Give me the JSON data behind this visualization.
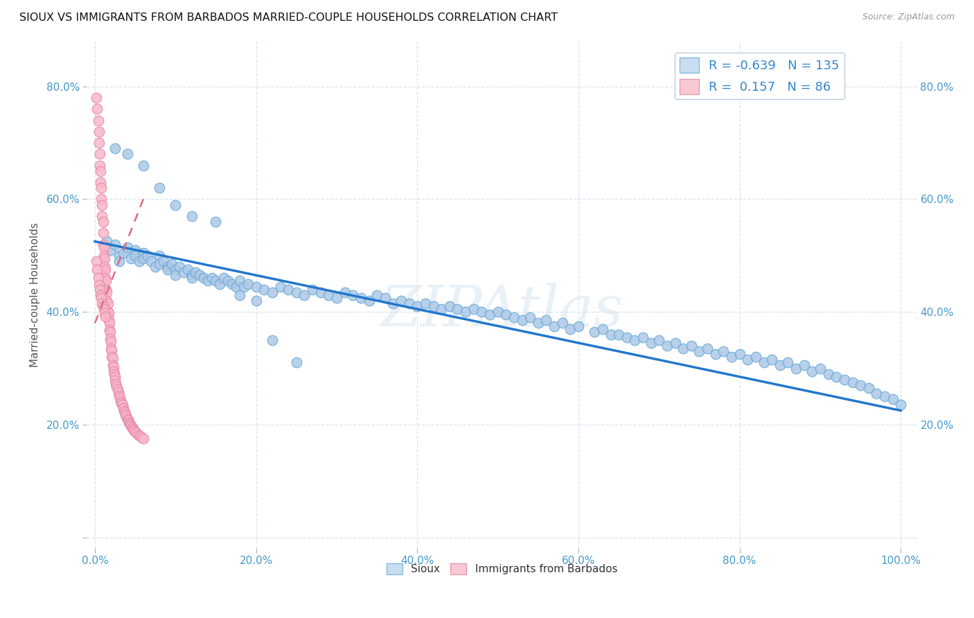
{
  "title": "SIOUX VS IMMIGRANTS FROM BARBADOS MARRIED-COUPLE HOUSEHOLDS CORRELATION CHART",
  "source": "Source: ZipAtlas.com",
  "ylabel": "Married-couple Households",
  "watermark": "ZIPAtlas",
  "legend_blue_R": "-0.639",
  "legend_blue_N": "135",
  "legend_pink_R": "0.157",
  "legend_pink_N": "86",
  "blue_color": "#adc8e8",
  "blue_edge_color": "#6aaad4",
  "blue_line_color": "#2277cc",
  "pink_color": "#f7b8c8",
  "pink_edge_color": "#e888a8",
  "pink_line_color": "#e06880",
  "xlim": [
    -0.01,
    1.02
  ],
  "ylim": [
    -0.02,
    0.88
  ],
  "xticks": [
    0.0,
    0.2,
    0.4,
    0.6,
    0.8,
    1.0
  ],
  "yticks": [
    0.0,
    0.2,
    0.4,
    0.6,
    0.8
  ],
  "xticklabels": [
    "0.0%",
    "20.0%",
    "40.0%",
    "60.0%",
    "80.0%",
    "100.0%"
  ],
  "yticklabels_left": [
    "",
    "20.0%",
    "40.0%",
    "60.0%",
    "80.0%"
  ],
  "yticklabels_right": [
    "",
    "20.0%",
    "40.0%",
    "60.0%",
    "80.0%"
  ],
  "blue_line_x": [
    0.0,
    1.0
  ],
  "blue_line_y": [
    0.525,
    0.225
  ],
  "pink_line_x": [
    0.0,
    0.06
  ],
  "pink_line_y": [
    0.38,
    0.6
  ],
  "blue_scatter_x": [
    0.015,
    0.02,
    0.025,
    0.03,
    0.03,
    0.035,
    0.04,
    0.045,
    0.05,
    0.05,
    0.055,
    0.06,
    0.06,
    0.065,
    0.07,
    0.075,
    0.08,
    0.08,
    0.085,
    0.09,
    0.09,
    0.095,
    0.1,
    0.1,
    0.105,
    0.11,
    0.115,
    0.12,
    0.12,
    0.125,
    0.13,
    0.135,
    0.14,
    0.145,
    0.15,
    0.155,
    0.16,
    0.165,
    0.17,
    0.175,
    0.18,
    0.185,
    0.19,
    0.2,
    0.21,
    0.22,
    0.23,
    0.24,
    0.25,
    0.26,
    0.27,
    0.28,
    0.29,
    0.3,
    0.31,
    0.32,
    0.33,
    0.34,
    0.35,
    0.36,
    0.37,
    0.38,
    0.39,
    0.4,
    0.41,
    0.42,
    0.43,
    0.44,
    0.45,
    0.46,
    0.47,
    0.48,
    0.49,
    0.5,
    0.51,
    0.52,
    0.53,
    0.54,
    0.55,
    0.56,
    0.57,
    0.58,
    0.59,
    0.6,
    0.62,
    0.63,
    0.64,
    0.65,
    0.66,
    0.67,
    0.68,
    0.69,
    0.7,
    0.71,
    0.72,
    0.73,
    0.74,
    0.75,
    0.76,
    0.77,
    0.78,
    0.79,
    0.8,
    0.81,
    0.82,
    0.83,
    0.84,
    0.85,
    0.86,
    0.87,
    0.88,
    0.89,
    0.9,
    0.91,
    0.92,
    0.93,
    0.94,
    0.95,
    0.96,
    0.97,
    0.98,
    0.99,
    1.0,
    0.025,
    0.04,
    0.06,
    0.08,
    0.1,
    0.12,
    0.15,
    0.18,
    0.2,
    0.22,
    0.25
  ],
  "blue_scatter_y": [
    0.525,
    0.51,
    0.52,
    0.5,
    0.49,
    0.505,
    0.515,
    0.495,
    0.51,
    0.5,
    0.49,
    0.505,
    0.495,
    0.5,
    0.49,
    0.48,
    0.5,
    0.485,
    0.49,
    0.48,
    0.475,
    0.485,
    0.475,
    0.465,
    0.48,
    0.47,
    0.475,
    0.465,
    0.46,
    0.47,
    0.465,
    0.46,
    0.455,
    0.46,
    0.455,
    0.45,
    0.46,
    0.455,
    0.45,
    0.445,
    0.455,
    0.445,
    0.45,
    0.445,
    0.44,
    0.435,
    0.445,
    0.44,
    0.435,
    0.43,
    0.44,
    0.435,
    0.43,
    0.425,
    0.435,
    0.43,
    0.425,
    0.42,
    0.43,
    0.425,
    0.415,
    0.42,
    0.415,
    0.41,
    0.415,
    0.41,
    0.405,
    0.41,
    0.405,
    0.4,
    0.405,
    0.4,
    0.395,
    0.4,
    0.395,
    0.39,
    0.385,
    0.39,
    0.38,
    0.385,
    0.375,
    0.38,
    0.37,
    0.375,
    0.365,
    0.37,
    0.36,
    0.36,
    0.355,
    0.35,
    0.355,
    0.345,
    0.35,
    0.34,
    0.345,
    0.335,
    0.34,
    0.33,
    0.335,
    0.325,
    0.33,
    0.32,
    0.325,
    0.315,
    0.32,
    0.31,
    0.315,
    0.305,
    0.31,
    0.3,
    0.305,
    0.295,
    0.3,
    0.29,
    0.285,
    0.28,
    0.275,
    0.27,
    0.265,
    0.255,
    0.25,
    0.245,
    0.235,
    0.69,
    0.68,
    0.66,
    0.62,
    0.59,
    0.57,
    0.56,
    0.43,
    0.42,
    0.35,
    0.31
  ],
  "pink_scatter_x": [
    0.002,
    0.003,
    0.004,
    0.005,
    0.005,
    0.006,
    0.006,
    0.007,
    0.007,
    0.008,
    0.008,
    0.009,
    0.009,
    0.01,
    0.01,
    0.01,
    0.011,
    0.011,
    0.012,
    0.012,
    0.013,
    0.013,
    0.014,
    0.014,
    0.015,
    0.015,
    0.016,
    0.016,
    0.017,
    0.017,
    0.018,
    0.018,
    0.019,
    0.019,
    0.02,
    0.02,
    0.021,
    0.021,
    0.022,
    0.022,
    0.023,
    0.023,
    0.024,
    0.025,
    0.025,
    0.026,
    0.027,
    0.028,
    0.029,
    0.03,
    0.031,
    0.032,
    0.033,
    0.034,
    0.035,
    0.036,
    0.037,
    0.038,
    0.039,
    0.04,
    0.041,
    0.042,
    0.043,
    0.044,
    0.045,
    0.046,
    0.047,
    0.048,
    0.05,
    0.052,
    0.054,
    0.056,
    0.058,
    0.06,
    0.002,
    0.003,
    0.004,
    0.005,
    0.006,
    0.007,
    0.008,
    0.009,
    0.01,
    0.011,
    0.012,
    0.013
  ],
  "pink_scatter_y": [
    0.78,
    0.76,
    0.74,
    0.72,
    0.7,
    0.68,
    0.66,
    0.65,
    0.63,
    0.62,
    0.6,
    0.59,
    0.57,
    0.56,
    0.54,
    0.52,
    0.515,
    0.5,
    0.495,
    0.48,
    0.475,
    0.46,
    0.455,
    0.44,
    0.435,
    0.42,
    0.415,
    0.4,
    0.398,
    0.385,
    0.38,
    0.368,
    0.365,
    0.352,
    0.348,
    0.335,
    0.332,
    0.32,
    0.318,
    0.305,
    0.302,
    0.295,
    0.29,
    0.285,
    0.278,
    0.272,
    0.268,
    0.262,
    0.258,
    0.252,
    0.248,
    0.242,
    0.238,
    0.235,
    0.23,
    0.225,
    0.222,
    0.218,
    0.215,
    0.21,
    0.208,
    0.205,
    0.202,
    0.2,
    0.198,
    0.195,
    0.192,
    0.19,
    0.188,
    0.185,
    0.182,
    0.18,
    0.178,
    0.175,
    0.49,
    0.475,
    0.46,
    0.448,
    0.44,
    0.43,
    0.425,
    0.415,
    0.41,
    0.405,
    0.398,
    0.392
  ]
}
